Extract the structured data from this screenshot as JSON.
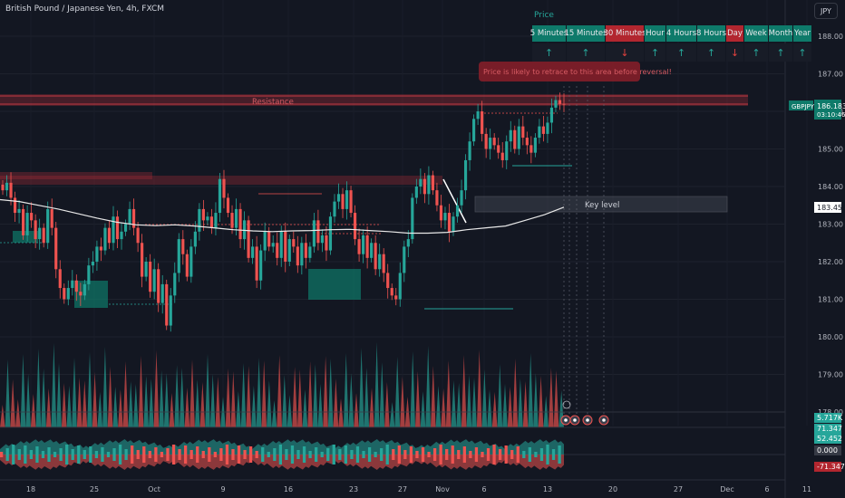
{
  "header": {
    "title": "British Pound / Japanese Yen, 4h, FXCM",
    "currency_button": "JPY"
  },
  "price_table": {
    "heading": "Price",
    "columns": [
      {
        "label": "5 Minutes",
        "trend": "up"
      },
      {
        "label": "15 Minutes",
        "trend": "up"
      },
      {
        "label": "30 Minutes",
        "trend": "down"
      },
      {
        "label": "Hour",
        "trend": "up"
      },
      {
        "label": "4 Hours",
        "trend": "up"
      },
      {
        "label": "8 Hours",
        "trend": "up"
      },
      {
        "label": "Day",
        "trend": "down"
      },
      {
        "label": "Week",
        "trend": "up"
      },
      {
        "label": "Month",
        "trend": "up"
      },
      {
        "label": "Year",
        "trend": "up"
      }
    ]
  },
  "annotations": {
    "callout": "Price is likely to retrace to this area before reversal!",
    "resistance": "Resistance",
    "key_level": "Key level"
  },
  "price_labels": {
    "symbol": "GBPJPY",
    "last_price": "186.183",
    "countdown": "03:10:46",
    "ma_value": "183.453"
  },
  "indicator_labels": [
    {
      "text": "5.717K",
      "color": "#26a69a"
    },
    {
      "text": "71.347",
      "color": "#26a69a"
    },
    {
      "text": "52.452",
      "color": "#26a69a"
    },
    {
      "text": "0.000",
      "color": "#363a45"
    },
    {
      "text": "-71.347",
      "color": "#b2262f"
    }
  ],
  "colors": {
    "bull": "#26a69a",
    "bear": "#ef5350",
    "ma": "#e8e8e8",
    "resistance": "#a32a36",
    "background": "#131722"
  },
  "chart_data": {
    "type": "candlestick",
    "y_axis_ticks": [
      188.0,
      187.0,
      186.0,
      185.0,
      184.0,
      183.0,
      182.0,
      181.0,
      180.0,
      179.0,
      178.0
    ],
    "y_range": [
      177.2,
      188.7
    ],
    "x_axis_ticks": [
      "18",
      "25",
      "Oct",
      "9",
      "16",
      "23",
      "27",
      "Nov",
      "6",
      "13",
      "20",
      "27",
      "Dec",
      "6",
      "11"
    ],
    "close_path": [
      183.9,
      184.1,
      183.7,
      183.3,
      183.4,
      182.7,
      183.3,
      183.1,
      182.6,
      182.9,
      182.5,
      183.4,
      182.9,
      181.8,
      181.3,
      181.0,
      181.3,
      181.5,
      181.2,
      181.1,
      181.4,
      181.9,
      182.0,
      182.4,
      182.3,
      182.9,
      182.5,
      183.2,
      182.6,
      182.8,
      183.0,
      183.4,
      182.9,
      182.5,
      181.6,
      182.0,
      181.2,
      181.8,
      180.9,
      181.4,
      180.3,
      181.1,
      181.7,
      182.6,
      182.2,
      181.6,
      182.4,
      182.8,
      183.4,
      183.1,
      183.2,
      182.9,
      183.3,
      184.2,
      183.7,
      183.3,
      182.9,
      183.4,
      182.6,
      183.1,
      182.1,
      182.4,
      181.5,
      182.3,
      182.8,
      182.4,
      182.5,
      182.1,
      182.8,
      182.0,
      182.6,
      182.4,
      181.9,
      182.5,
      182.1,
      182.4,
      183.1,
      182.5,
      182.7,
      182.3,
      183.2,
      183.6,
      183.8,
      183.4,
      183.9,
      183.3,
      182.6,
      182.2,
      182.7,
      182.1,
      182.5,
      181.8,
      182.2,
      181.7,
      181.3,
      181.1,
      181.0,
      181.7,
      182.4,
      182.6,
      183.7,
      184.0,
      184.2,
      183.8,
      184.3,
      183.9,
      183.5,
      183.1,
      183.3,
      182.8,
      183.2,
      183.5,
      183.9,
      184.7,
      185.2,
      185.8,
      186.0,
      185.4,
      185.0,
      185.3,
      185.1,
      184.9,
      184.7,
      185.2,
      185.5,
      185.0,
      185.6,
      185.3,
      185.1,
      184.9,
      185.3,
      185.6,
      185.4,
      185.7,
      186.1,
      186.3,
      186.2,
      186.18
    ],
    "moving_average": [
      183.65,
      183.6,
      183.5,
      183.4,
      183.28,
      183.16,
      183.05,
      182.98,
      182.96,
      182.98,
      182.95,
      182.9,
      182.85,
      182.82,
      182.8,
      182.82,
      182.83,
      182.85,
      182.86,
      182.83,
      182.8,
      182.76,
      182.76,
      182.78,
      182.85,
      182.9,
      182.95,
      183.1,
      183.25,
      183.45
    ]
  }
}
